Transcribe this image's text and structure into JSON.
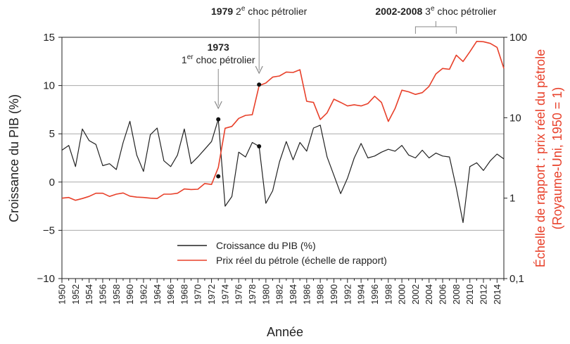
{
  "chart_data": {
    "type": "line",
    "title": "",
    "xlabel": "Année",
    "ylabel_left": "Croissance du PIB (%)",
    "ylabel_right_line1": "Échelle de rapport : prix réel du pétrole",
    "ylabel_right_line2": "(Royaume-Uni, 1950 = 1)",
    "xlim": [
      1950,
      2015
    ],
    "ylim_left": [
      -10,
      15
    ],
    "ylim_right": [
      0.1,
      100
    ],
    "right_scale": "log",
    "grid": "horizontal",
    "legend_placement": "bottom-center",
    "x_ticks": [
      "1950",
      "1952",
      "1954",
      "1956",
      "1958",
      "1960",
      "1962",
      "1964",
      "1966",
      "1968",
      "1970",
      "1972",
      "1974",
      "1976",
      "1978",
      "1980",
      "1982",
      "1984",
      "1986",
      "1988",
      "1990",
      "1992",
      "1994",
      "1996",
      "1998",
      "2000",
      "2002",
      "2004",
      "2006",
      "2008",
      "2010",
      "2012",
      "2014"
    ],
    "y_ticks_left": [
      "15",
      "10",
      "5",
      "0",
      "−5",
      "−10"
    ],
    "y_ticks_right": [
      "100",
      "10",
      "1",
      "0,1"
    ],
    "years": [
      1950,
      1951,
      1952,
      1953,
      1954,
      1955,
      1956,
      1957,
      1958,
      1959,
      1960,
      1961,
      1962,
      1963,
      1964,
      1965,
      1966,
      1967,
      1968,
      1969,
      1970,
      1971,
      1972,
      1973,
      1974,
      1975,
      1976,
      1977,
      1978,
      1979,
      1980,
      1981,
      1982,
      1983,
      1984,
      1985,
      1986,
      1987,
      1988,
      1989,
      1990,
      1991,
      1992,
      1993,
      1994,
      1995,
      1996,
      1997,
      1998,
      1999,
      2000,
      2001,
      2002,
      2003,
      2004,
      2005,
      2006,
      2007,
      2008,
      2009,
      2010,
      2011,
      2012,
      2013,
      2014,
      2015
    ],
    "series": [
      {
        "name": "Croissance du PIB (%)",
        "axis": "left",
        "color": "#222222",
        "values": [
          3.3,
          3.8,
          1.6,
          5.5,
          4.3,
          3.9,
          1.7,
          1.9,
          1.3,
          4.1,
          6.3,
          2.8,
          1.1,
          4.9,
          5.6,
          2.2,
          1.6,
          2.8,
          5.5,
          1.9,
          2.6,
          3.4,
          4.2,
          6.5,
          -2.5,
          -1.5,
          3.1,
          2.6,
          4.1,
          3.7,
          -2.2,
          -0.9,
          2.1,
          4.2,
          2.3,
          4.1,
          3.2,
          5.6,
          5.9,
          2.6,
          0.7,
          -1.2,
          0.4,
          2.5,
          4.0,
          2.5,
          2.7,
          3.1,
          3.4,
          3.2,
          3.8,
          2.8,
          2.5,
          3.3,
          2.5,
          3.0,
          2.7,
          2.6,
          -0.6,
          -4.2,
          1.6,
          2.0,
          1.2,
          2.2,
          2.9,
          2.4
        ]
      },
      {
        "name": "Prix réel du pétrole (échelle de rapport)",
        "axis": "right",
        "color": "#e8402a",
        "values": [
          1.0,
          1.02,
          0.94,
          0.99,
          1.05,
          1.15,
          1.15,
          1.05,
          1.12,
          1.16,
          1.06,
          1.03,
          1.02,
          1.0,
          0.99,
          1.12,
          1.12,
          1.15,
          1.3,
          1.28,
          1.29,
          1.52,
          1.48,
          2.4,
          7.4,
          7.8,
          9.8,
          10.7,
          10.9,
          25.0,
          27.0,
          32.0,
          33.0,
          37.0,
          36.5,
          39.5,
          16.0,
          15.5,
          9.5,
          11.5,
          17.0,
          15.5,
          14.0,
          14.5,
          14.0,
          15.0,
          18.5,
          15.5,
          9.0,
          13.0,
          22.0,
          21.0,
          19.5,
          20.5,
          24.5,
          35.0,
          41.0,
          40.0,
          60.0,
          50.0,
          66.0,
          89.0,
          88.0,
          84.0,
          75.0,
          41.0
        ]
      }
    ],
    "markers": [
      {
        "year": 1973,
        "value": 6.5,
        "axis": "left"
      },
      {
        "year": 1973,
        "value": 0.6,
        "axis": "left"
      },
      {
        "year": 1979,
        "value": 10.1,
        "axis": "left"
      },
      {
        "year": 1979,
        "value": 3.7,
        "axis": "left"
      }
    ],
    "annotations": {
      "a1973_year": "1973",
      "a1973_text": "choc pétrolier",
      "a1973_num": "1",
      "a1973_sup": "er",
      "a1979_year": "1979",
      "a1979_num": "2",
      "a1979_sup": "e",
      "a1979_text": "choc pétrolier",
      "a2002_years": "2002-2008",
      "a2002_num": "3",
      "a2002_sup": "e",
      "a2002_text": "choc pétrolier",
      "bracket_from": 2002,
      "bracket_to": 2008
    }
  }
}
